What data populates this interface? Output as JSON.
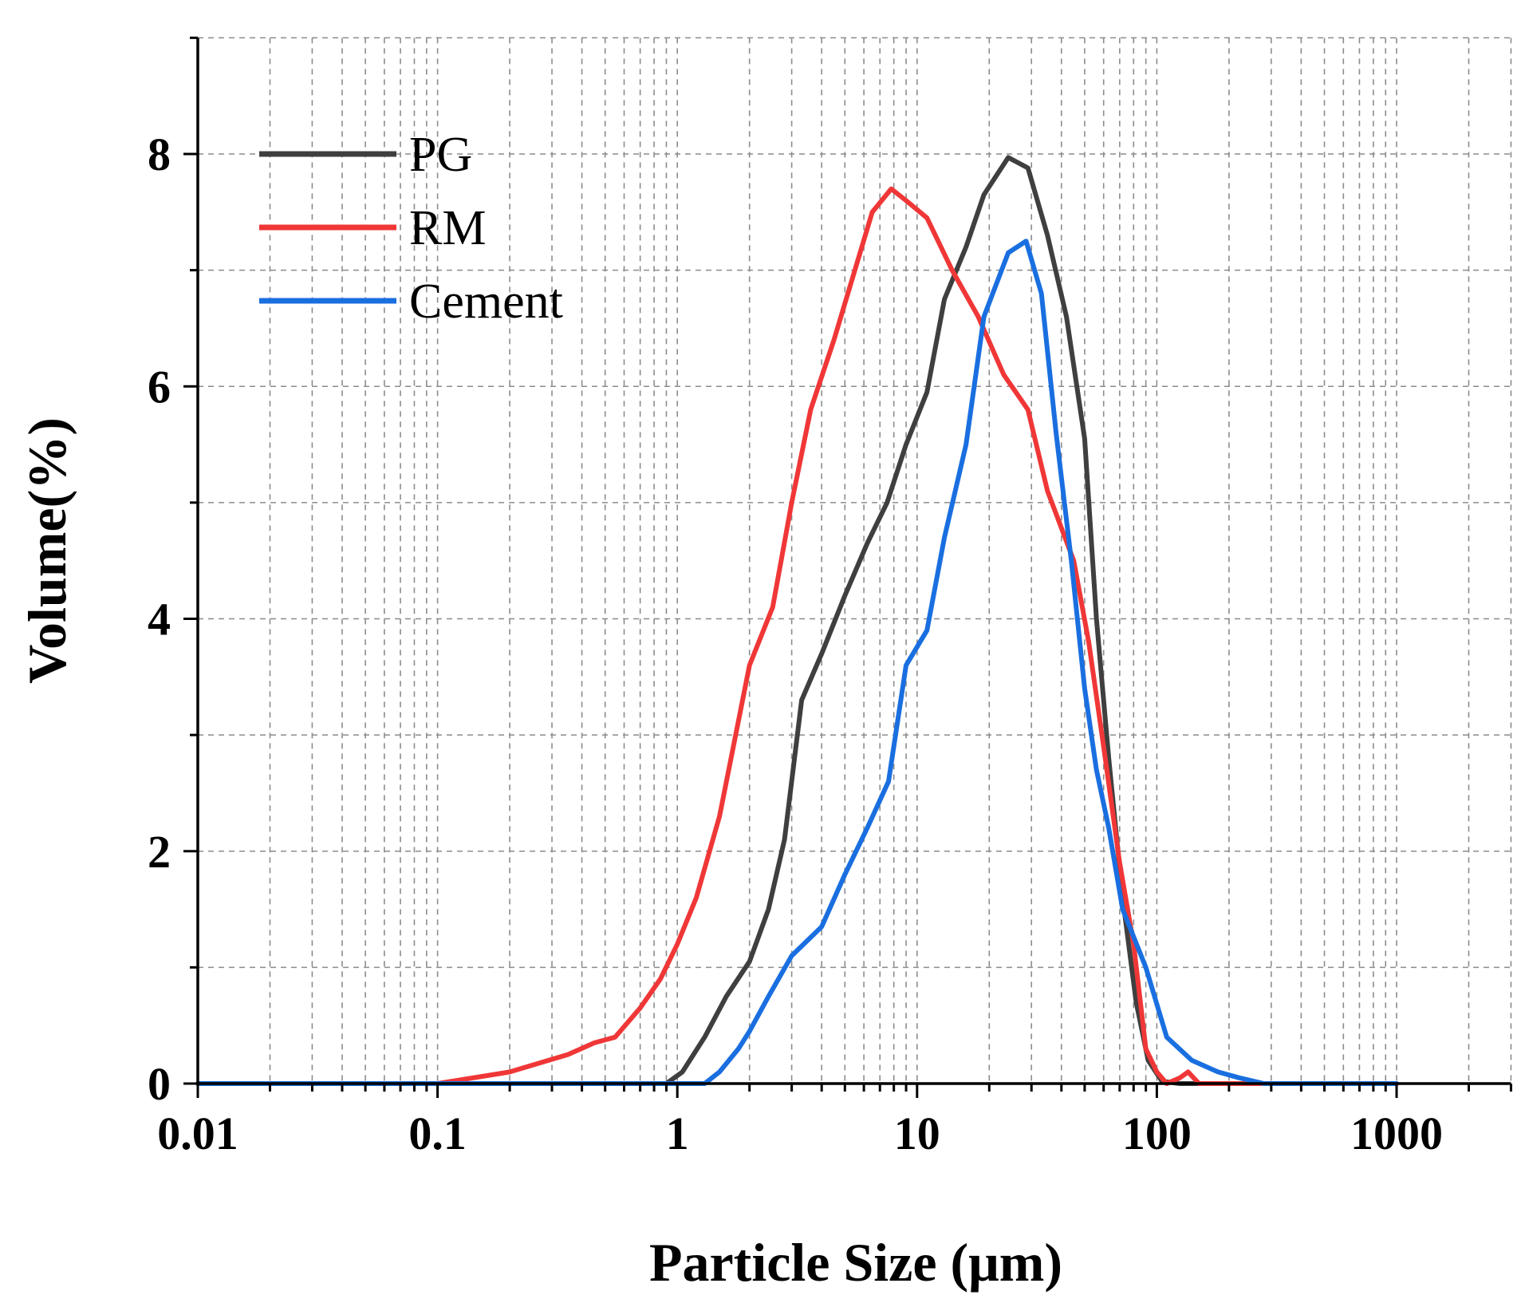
{
  "chart_data": {
    "type": "line",
    "title": "",
    "xlabel": "Particle Size (μm)",
    "ylabel": "Volume(%)",
    "xscale": "log",
    "xlim": [
      0.01,
      3000
    ],
    "ylim": [
      0,
      9
    ],
    "x_ticks": [
      0.01,
      0.1,
      1,
      10,
      100,
      1000
    ],
    "x_tick_labels": [
      "0.01",
      "0.1",
      "1",
      "10",
      "100",
      "1000"
    ],
    "y_ticks": [
      0,
      2,
      4,
      6,
      8
    ],
    "y_tick_labels": [
      "0",
      "2",
      "4",
      "6",
      "8"
    ],
    "grid": true,
    "legend_position": "top-left",
    "series": [
      {
        "name": "PG",
        "color": "#3f3f3f",
        "points": [
          [
            0.01,
            0
          ],
          [
            0.9,
            0
          ],
          [
            1.05,
            0.1
          ],
          [
            1.3,
            0.4
          ],
          [
            1.6,
            0.75
          ],
          [
            2.0,
            1.05
          ],
          [
            2.4,
            1.5
          ],
          [
            2.8,
            2.1
          ],
          [
            3.3,
            3.3
          ],
          [
            4.0,
            3.7
          ],
          [
            5.0,
            4.2
          ],
          [
            6.2,
            4.65
          ],
          [
            7.5,
            5.0
          ],
          [
            9.0,
            5.5
          ],
          [
            11.0,
            5.95
          ],
          [
            13.0,
            6.75
          ],
          [
            16.0,
            7.2
          ],
          [
            19.0,
            7.65
          ],
          [
            24.0,
            7.97
          ],
          [
            29.0,
            7.88
          ],
          [
            35.0,
            7.3
          ],
          [
            42.0,
            6.6
          ],
          [
            50.0,
            5.55
          ],
          [
            56.0,
            4.0
          ],
          [
            63.0,
            2.8
          ],
          [
            72.0,
            1.6
          ],
          [
            82.0,
            0.7
          ],
          [
            92.0,
            0.2
          ],
          [
            105.0,
            0.02
          ],
          [
            125.0,
            0
          ],
          [
            1000,
            0
          ]
        ]
      },
      {
        "name": "RM",
        "color": "#f03737",
        "points": [
          [
            0.01,
            0
          ],
          [
            0.1,
            0
          ],
          [
            0.2,
            0.1
          ],
          [
            0.35,
            0.25
          ],
          [
            0.45,
            0.35
          ],
          [
            0.55,
            0.4
          ],
          [
            0.7,
            0.65
          ],
          [
            0.85,
            0.9
          ],
          [
            1.0,
            1.2
          ],
          [
            1.2,
            1.6
          ],
          [
            1.5,
            2.3
          ],
          [
            2.0,
            3.6
          ],
          [
            2.5,
            4.1
          ],
          [
            3.0,
            5.0
          ],
          [
            3.6,
            5.8
          ],
          [
            4.5,
            6.4
          ],
          [
            5.5,
            7.0
          ],
          [
            6.5,
            7.5
          ],
          [
            7.8,
            7.7
          ],
          [
            9.0,
            7.6
          ],
          [
            11.0,
            7.45
          ],
          [
            14.0,
            7.0
          ],
          [
            18.0,
            6.6
          ],
          [
            23.0,
            6.1
          ],
          [
            29.0,
            5.8
          ],
          [
            35.0,
            5.1
          ],
          [
            45.0,
            4.5
          ],
          [
            52.0,
            3.8
          ],
          [
            60.0,
            2.9
          ],
          [
            70.0,
            1.9
          ],
          [
            80.0,
            1.2
          ],
          [
            90.0,
            0.3
          ],
          [
            100.0,
            0.1
          ],
          [
            110.0,
            0
          ],
          [
            125.0,
            0.05
          ],
          [
            135.0,
            0.1
          ],
          [
            150.0,
            0
          ],
          [
            1000,
            0
          ]
        ]
      },
      {
        "name": "Cement",
        "color": "#1a6fe0",
        "points": [
          [
            0.01,
            0
          ],
          [
            1.3,
            0
          ],
          [
            1.5,
            0.1
          ],
          [
            1.8,
            0.3
          ],
          [
            2.0,
            0.45
          ],
          [
            2.4,
            0.75
          ],
          [
            3.0,
            1.1
          ],
          [
            4.0,
            1.35
          ],
          [
            5.0,
            1.8
          ],
          [
            6.2,
            2.2
          ],
          [
            7.6,
            2.6
          ],
          [
            9.0,
            3.6
          ],
          [
            11.0,
            3.9
          ],
          [
            13.0,
            4.7
          ],
          [
            16.0,
            5.5
          ],
          [
            19.0,
            6.6
          ],
          [
            24.0,
            7.15
          ],
          [
            28.5,
            7.25
          ],
          [
            33.0,
            6.8
          ],
          [
            38.0,
            5.6
          ],
          [
            44.0,
            4.5
          ],
          [
            50.0,
            3.4
          ],
          [
            56.0,
            2.7
          ],
          [
            63.0,
            2.2
          ],
          [
            72.0,
            1.5
          ],
          [
            90.0,
            1.0
          ],
          [
            110.0,
            0.4
          ],
          [
            140.0,
            0.2
          ],
          [
            180.0,
            0.1
          ],
          [
            220.0,
            0.05
          ],
          [
            280.0,
            0
          ],
          [
            1000,
            0
          ]
        ]
      }
    ]
  }
}
